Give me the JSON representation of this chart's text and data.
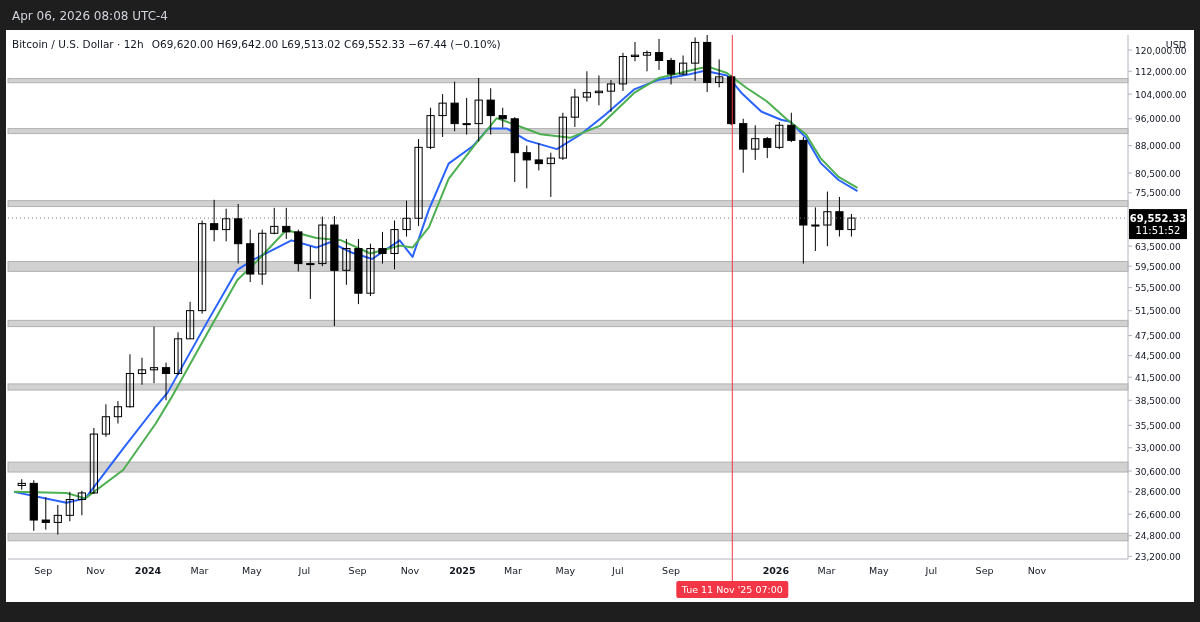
{
  "chart_data": {
    "type": "candlestick",
    "title": "Bitcoin / U.S. Dollar · 12h",
    "subtitle": "O69,620.00  H69,642.00  L69,513.02  C69,552.33  −67.44 (−0.10%)",
    "ylabel": "USD",
    "log": "y",
    "grid": false,
    "marker": "none",
    "xlim": [
      "2023-07-22",
      "2027-02-15"
    ],
    "ylim": [
      23000,
      126000
    ],
    "xticks": [
      {
        "value": "2023-09-01",
        "label": "Sep"
      },
      {
        "value": "2023-11-01",
        "label": "Nov"
      },
      {
        "value": "2024-01-01",
        "label": "2024"
      },
      {
        "value": "2024-03-01",
        "label": "Mar"
      },
      {
        "value": "2024-05-01",
        "label": "May"
      },
      {
        "value": "2024-07-01",
        "label": "Jul"
      },
      {
        "value": "2024-09-01",
        "label": "Sep"
      },
      {
        "value": "2024-11-01",
        "label": "Nov"
      },
      {
        "value": "2025-01-01",
        "label": "2025"
      },
      {
        "value": "2025-03-01",
        "label": "Mar"
      },
      {
        "value": "2025-05-01",
        "label": "May"
      },
      {
        "value": "2025-07-01",
        "label": "Jul"
      },
      {
        "value": "2025-09-01",
        "label": "Sep"
      },
      {
        "value": "2026-01-01",
        "label": "2026"
      },
      {
        "value": "2026-03-01",
        "label": "Mar"
      },
      {
        "value": "2026-05-01",
        "label": "May"
      },
      {
        "value": "2026-07-01",
        "label": "Jul"
      },
      {
        "value": "2026-09-01",
        "label": "Sep"
      },
      {
        "value": "2026-11-01",
        "label": "Nov"
      }
    ],
    "yticks": [
      {
        "value": 23200,
        "label": "23,200.00"
      },
      {
        "value": 24800,
        "label": "24,800.00"
      },
      {
        "value": 26600,
        "label": "26,600.00"
      },
      {
        "value": 28600,
        "label": "28,600.00"
      },
      {
        "value": 30600,
        "label": "30,600.00"
      },
      {
        "value": 33000,
        "label": "33,000.00"
      },
      {
        "value": 35500,
        "label": "35,500.00"
      },
      {
        "value": 38500,
        "label": "38,500.00"
      },
      {
        "value": 41500,
        "label": "41,500.00"
      },
      {
        "value": 44500,
        "label": "44,500.00"
      },
      {
        "value": 47500,
        "label": "47,500.00"
      },
      {
        "value": 51500,
        "label": "51,500.00"
      },
      {
        "value": 55500,
        "label": "55,500.00"
      },
      {
        "value": 59500,
        "label": "59,500.00"
      },
      {
        "value": 63500,
        "label": "63,500.00"
      },
      {
        "value": 75500,
        "label": "75,500.00"
      },
      {
        "value": 80500,
        "label": "80,500.00"
      },
      {
        "value": 88000,
        "label": "88,000.00"
      },
      {
        "value": 96000,
        "label": "96,000.00"
      },
      {
        "value": 104000,
        "label": "104,000.00"
      },
      {
        "value": 112000,
        "label": "112,000.00"
      },
      {
        "value": 120000,
        "label": "120,000.00"
      }
    ],
    "bands": [
      {
        "axis": "y",
        "from": 107900,
        "to": 109400,
        "color": "#d1d1d1"
      },
      {
        "axis": "y",
        "from": 91500,
        "to": 93000,
        "color": "#d1d1d1"
      },
      {
        "axis": "y",
        "from": 72200,
        "to": 73600,
        "color": "#d1d1d1"
      },
      {
        "axis": "y",
        "from": 58500,
        "to": 60400,
        "color": "#d1d1d1"
      },
      {
        "axis": "y",
        "from": 48900,
        "to": 49900,
        "color": "#d1d1d1"
      },
      {
        "axis": "y",
        "from": 39800,
        "to": 40600,
        "color": "#d1d1d1"
      },
      {
        "axis": "y",
        "from": 30500,
        "to": 31500,
        "color": "#d1d1d1"
      },
      {
        "axis": "y",
        "from": 24400,
        "to": 25000,
        "color": "#d1d1d1"
      }
    ],
    "ref_lines": [
      {
        "axis": "y",
        "value": 69552.33,
        "label": "69,552.33",
        "color": "#787b86",
        "line_style": "dotted"
      },
      {
        "axis": "x",
        "value": "2025-11-11T07:00",
        "label": "Tue 11 Nov '25  07:00",
        "color": "#f23645",
        "line_style": "solid"
      }
    ],
    "annotations": [
      "Apr 06, 2026 08:08 UTC-4",
      "11:51:52"
    ],
    "series": [
      {
        "color": "#000000",
        "x": [
          "2023-08-07",
          "2023-08-21",
          "2023-09-04",
          "2023-09-18",
          "2023-10-02",
          "2023-10-16",
          "2023-10-30",
          "2023-11-13",
          "2023-11-27",
          "2023-12-11",
          "2023-12-25",
          "2024-01-08",
          "2024-01-22",
          "2024-02-05",
          "2024-02-19",
          "2024-03-04",
          "2024-03-18",
          "2024-04-01",
          "2024-04-15",
          "2024-04-29",
          "2024-05-13",
          "2024-05-27",
          "2024-06-10",
          "2024-06-24",
          "2024-07-08",
          "2024-07-22",
          "2024-08-05",
          "2024-08-19",
          "2024-09-02",
          "2024-09-16",
          "2024-09-30",
          "2024-10-14",
          "2024-10-28",
          "2024-11-11",
          "2024-11-25",
          "2024-12-09",
          "2024-12-23",
          "2025-01-06",
          "2025-01-20",
          "2025-02-03",
          "2025-02-17",
          "2025-03-03",
          "2025-03-17",
          "2025-03-31",
          "2025-04-14",
          "2025-04-28",
          "2025-05-12",
          "2025-05-26",
          "2025-06-09",
          "2025-06-23",
          "2025-07-07",
          "2025-07-21",
          "2025-08-04",
          "2025-08-18",
          "2025-09-01",
          "2025-09-15",
          "2025-09-29",
          "2025-10-13",
          "2025-10-27",
          "2025-11-10",
          "2025-11-24",
          "2025-12-08",
          "2025-12-22",
          "2026-01-05",
          "2026-01-19",
          "2026-02-02",
          "2026-02-16",
          "2026-03-02",
          "2026-03-16",
          "2026-03-30"
        ],
        "ohlc": [
          [
            29200,
            29800,
            28800,
            29400
          ],
          [
            29400,
            29700,
            25200,
            26100
          ],
          [
            26100,
            28100,
            25300,
            25900
          ],
          [
            25900,
            27400,
            24900,
            26500
          ],
          [
            26500,
            28600,
            26000,
            27900
          ],
          [
            27900,
            28700,
            26500,
            28500
          ],
          [
            28500,
            35200,
            28400,
            34500
          ],
          [
            34500,
            38000,
            34200,
            36500
          ],
          [
            36500,
            38400,
            35700,
            37700
          ],
          [
            37700,
            44700,
            37600,
            42000
          ],
          [
            42000,
            44200,
            40500,
            42500
          ],
          [
            42500,
            48900,
            40700,
            42800
          ],
          [
            42800,
            43500,
            38500,
            42000
          ],
          [
            42000,
            48000,
            41800,
            47000
          ],
          [
            47000,
            53000,
            47000,
            51500
          ],
          [
            51500,
            69000,
            51000,
            68300
          ],
          [
            68300,
            73800,
            64500,
            67000
          ],
          [
            67000,
            71700,
            64500,
            69400
          ],
          [
            69400,
            72800,
            60000,
            64000
          ],
          [
            64000,
            67000,
            56500,
            58000
          ],
          [
            58000,
            67000,
            56000,
            66200
          ],
          [
            66200,
            71900,
            66000,
            67700
          ],
          [
            67700,
            71900,
            65000,
            66500
          ],
          [
            66500,
            67000,
            58500,
            60000
          ],
          [
            60000,
            63500,
            53500,
            60000
          ],
          [
            60000,
            69900,
            59500,
            68000
          ],
          [
            68000,
            70000,
            49000,
            58700
          ],
          [
            58700,
            65000,
            56000,
            63000
          ],
          [
            63000,
            65000,
            52600,
            54500
          ],
          [
            54500,
            64000,
            54000,
            63000
          ],
          [
            63000,
            66500,
            60000,
            62000
          ],
          [
            62000,
            69000,
            58900,
            67000
          ],
          [
            67000,
            73600,
            65500,
            69500
          ],
          [
            69500,
            89900,
            67800,
            87500
          ],
          [
            87500,
            99500,
            87000,
            97000
          ],
          [
            97000,
            104000,
            90500,
            101000
          ],
          [
            101000,
            108300,
            92200,
            94500
          ],
          [
            94500,
            102700,
            91200,
            94500
          ],
          [
            94500,
            109600,
            89200,
            102000
          ],
          [
            102000,
            106000,
            91200,
            97000
          ],
          [
            97000,
            99500,
            93300,
            96000
          ],
          [
            96000,
            96500,
            78200,
            86000
          ],
          [
            86000,
            88000,
            76600,
            84000
          ],
          [
            84000,
            88700,
            81200,
            83000
          ],
          [
            83000,
            86000,
            74500,
            84500
          ],
          [
            84500,
            97900,
            84000,
            96500
          ],
          [
            96500,
            105800,
            93500,
            103000
          ],
          [
            103000,
            112000,
            101500,
            104500
          ],
          [
            104500,
            110500,
            100300,
            105000
          ],
          [
            105000,
            108900,
            98200,
            107500
          ],
          [
            107500,
            118900,
            105100,
            117500
          ],
          [
            117500,
            123200,
            115700,
            118000
          ],
          [
            118000,
            119800,
            112000,
            119000
          ],
          [
            119000,
            124400,
            112500,
            116000
          ],
          [
            116000,
            117000,
            107300,
            111000
          ],
          [
            111000,
            117900,
            110600,
            115000
          ],
          [
            115000,
            125000,
            108600,
            123000
          ],
          [
            123000,
            126000,
            104700,
            108000
          ],
          [
            108000,
            116400,
            106300,
            110000
          ],
          [
            110000,
            110500,
            94000,
            94500
          ],
          [
            94500,
            96000,
            80600,
            87000
          ],
          [
            87000,
            94000,
            84000,
            90000
          ],
          [
            90000,
            90500,
            84500,
            87500
          ],
          [
            87500,
            95000,
            87000,
            94000
          ],
          [
            94000,
            97900,
            89000,
            89500
          ],
          [
            89500,
            90500,
            60000,
            68000
          ],
          [
            68000,
            72000,
            62500,
            68000
          ],
          [
            68000,
            75800,
            63500,
            71000
          ],
          [
            71000,
            74500,
            65500,
            67000
          ],
          [
            67000,
            70500,
            65500,
            69552.33
          ]
        ]
      },
      {
        "type": "line",
        "color": "#2962ff",
        "x": [
          "2023-07-29",
          "2023-09-28",
          "2023-10-20",
          "2023-12-03",
          "2024-01-10",
          "2024-01-24",
          "2024-03-11",
          "2024-04-14",
          "2024-05-01",
          "2024-06-16",
          "2024-07-15",
          "2024-07-31",
          "2024-08-25",
          "2024-09-18",
          "2024-10-20",
          "2024-11-04",
          "2024-11-23",
          "2024-12-16",
          "2025-01-13",
          "2025-01-31",
          "2025-02-22",
          "2025-03-17",
          "2025-04-21",
          "2025-05-19",
          "2025-06-16",
          "2025-07-20",
          "2025-08-18",
          "2025-09-21",
          "2025-10-10",
          "2025-11-05",
          "2025-11-22",
          "2025-12-15",
          "2026-01-07",
          "2026-01-18",
          "2026-02-05",
          "2026-02-22",
          "2026-03-15",
          "2026-04-06"
        ],
        "values": [
          28600,
          27600,
          28000,
          32900,
          37700,
          39500,
          49900,
          58800,
          60600,
          64700,
          63200,
          64300,
          62200,
          60900,
          64700,
          61300,
          71500,
          83000,
          87800,
          93000,
          93000,
          89500,
          87000,
          91300,
          97200,
          105600,
          109000,
          110800,
          112200,
          110500,
          104400,
          98300,
          95700,
          95100,
          90300,
          83200,
          78700,
          75900
        ]
      },
      {
        "type": "line",
        "color": "#4caf50",
        "x": [
          "2023-07-29",
          "2023-09-28",
          "2023-10-20",
          "2023-12-03",
          "2024-01-10",
          "2024-01-28",
          "2024-03-11",
          "2024-04-14",
          "2024-05-07",
          "2024-06-10",
          "2024-07-15",
          "2024-08-13",
          "2024-09-16",
          "2024-10-20",
          "2024-11-04",
          "2024-11-23",
          "2024-12-16",
          "2025-01-13",
          "2025-02-10",
          "2025-03-05",
          "2025-04-02",
          "2025-05-07",
          "2025-06-10",
          "2025-07-20",
          "2025-08-18",
          "2025-10-03",
          "2025-10-14",
          "2025-11-05",
          "2025-11-28",
          "2025-12-21",
          "2026-01-13",
          "2026-02-05",
          "2026-02-22",
          "2026-03-15",
          "2026-04-06"
        ],
        "values": [
          28600,
          28500,
          28000,
          30700,
          35700,
          38800,
          48100,
          56900,
          60500,
          66900,
          65200,
          64700,
          62000,
          63600,
          63200,
          67500,
          79000,
          87400,
          96200,
          94000,
          91300,
          90300,
          93800,
          104400,
          109600,
          113000,
          113700,
          111400,
          106100,
          101700,
          96000,
          91300,
          84500,
          79500,
          76700
        ]
      }
    ]
  }
}
